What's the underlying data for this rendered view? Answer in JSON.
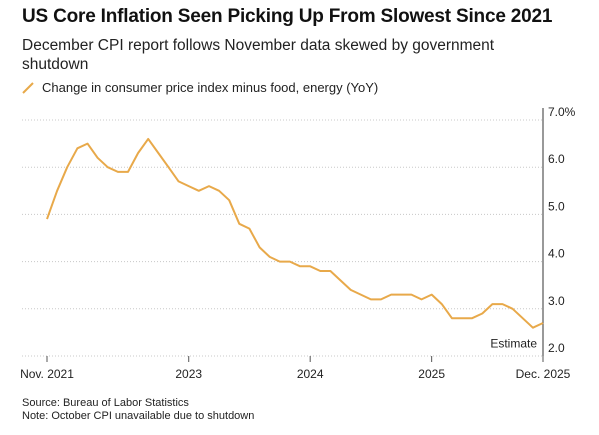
{
  "title": "US Core Inflation Seen Picking Up From Slowest Since 2021",
  "subtitle": "December CPI report follows November data skewed by government shutdown",
  "legend": {
    "label": "Change in consumer price index minus food, energy (YoY)",
    "color": "#e8a94a"
  },
  "source": "Source: Bureau of Labor Statistics",
  "note": "Note: October CPI unavailable due to shutdown",
  "chart_data": {
    "type": "line",
    "x_tick_labels": [
      "Nov. 2021",
      "2023",
      "2024",
      "2025",
      "Dec. 2025"
    ],
    "y_tick_labels": [
      "7.0%",
      "6.0",
      "5.0",
      "4.0",
      "3.0",
      "2.0"
    ],
    "ylim": [
      2.0,
      7.0
    ],
    "xlim": [
      "2021-11",
      "2025-12"
    ],
    "y_axis_position": "right",
    "grid": "horizontal dotted",
    "annotation": {
      "text": "Estimate",
      "x": "2025-12",
      "y": 2.6
    },
    "series": [
      {
        "color": "#e8a94a",
        "x": [
          "2021-11",
          "2021-12",
          "2022-01",
          "2022-02",
          "2022-03",
          "2022-04",
          "2022-05",
          "2022-06",
          "2022-07",
          "2022-08",
          "2022-09",
          "2022-10",
          "2022-11",
          "2022-12",
          "2023-01",
          "2023-02",
          "2023-03",
          "2023-04",
          "2023-05",
          "2023-06",
          "2023-07",
          "2023-08",
          "2023-09",
          "2023-10",
          "2023-11",
          "2023-12",
          "2024-01",
          "2024-02",
          "2024-03",
          "2024-04",
          "2024-05",
          "2024-06",
          "2024-07",
          "2024-08",
          "2024-09",
          "2024-10",
          "2024-11",
          "2024-12",
          "2025-01",
          "2025-02",
          "2025-03",
          "2025-04",
          "2025-05",
          "2025-06",
          "2025-07",
          "2025-08",
          "2025-09",
          "2025-11",
          "2025-12"
        ],
        "values": [
          4.9,
          5.5,
          6.0,
          6.4,
          6.5,
          6.2,
          6.0,
          5.9,
          5.9,
          6.3,
          6.6,
          6.3,
          6.0,
          5.7,
          5.6,
          5.5,
          5.6,
          5.5,
          5.3,
          4.8,
          4.7,
          4.3,
          4.1,
          4.0,
          4.0,
          3.9,
          3.9,
          3.8,
          3.8,
          3.6,
          3.4,
          3.3,
          3.2,
          3.2,
          3.3,
          3.3,
          3.3,
          3.2,
          3.3,
          3.1,
          2.8,
          2.8,
          2.8,
          2.9,
          3.1,
          3.1,
          3.0,
          2.6,
          2.7
        ]
      }
    ]
  }
}
